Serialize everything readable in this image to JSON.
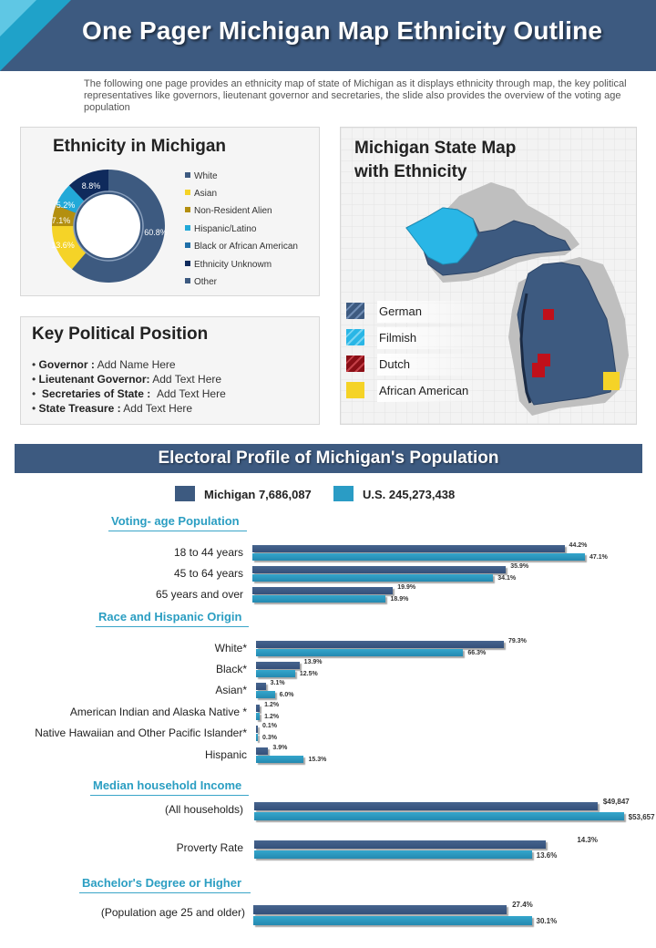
{
  "header": {
    "title": "One Pager Michigan Map Ethnicity Outline",
    "intro": "The following one page provides an ethnicity map of state of Michigan as it displays ethnicity through map, the key political representatives like governors, lieutenant governor and secretaries, the slide also provides the overview of the voting age population"
  },
  "ethnicity": {
    "title": "Ethnicity in Michigan",
    "legend": [
      "White",
      "Asian",
      "Non-Resident Alien",
      "Hispanic/Latino",
      "Black or African American",
      "Ethnicity Unknowm",
      "Other"
    ],
    "labels": {
      "white": "60.8%",
      "asian": "13.6%",
      "nra": "7.1%",
      "hisp": "5.2%",
      "unknown": "8.8%"
    }
  },
  "colors": {
    "white": "#3d5a80",
    "asian": "#f5d327",
    "nra": "#b38f10",
    "hisp": "#22a9d8",
    "black": "#1f6fa8",
    "unknown": "#0f2a5c",
    "other": "#3d5a80",
    "mi": "#3d5a80",
    "us": "#2a9cc5",
    "accent": "#2b9ec2"
  },
  "political": {
    "title": "Key Political Position",
    "items": [
      {
        "label": "Governor :",
        "value": "Add Name Here"
      },
      {
        "label": "Lieutenant Governor:",
        "value": "Add Text Here"
      },
      {
        "label": "Secretaries of State :",
        "value": "Add Text Here"
      },
      {
        "label": "State Treasure :",
        "value": "Add Text Here"
      }
    ]
  },
  "map": {
    "title_line1": "Michigan State Map",
    "title_line2": "with Ethnicity",
    "legend": [
      "German",
      "Filmish",
      "Dutch",
      "African American"
    ]
  },
  "electoral": {
    "banner": "Electoral Profile of Michigan's Population",
    "key_mi": "Michigan 7,686,087",
    "key_us": "U.S. 245,273,438",
    "sections": {
      "voting": "Voting- age Population",
      "race": "Race and Hispanic Origin",
      "income": "Median household Income",
      "bachelor": "Bachelor's Degree or Higher"
    }
  },
  "chart_data": {
    "type": "bar",
    "series": [
      {
        "name": "Michigan 7,686,087"
      },
      {
        "name": "U.S. 245,273,438"
      }
    ],
    "groups": [
      {
        "section": "Voting- age Population",
        "rows": [
          {
            "label": "18 to 44 years",
            "mi": 44.2,
            "us": 47.1,
            "mi_label": "44.2%",
            "us_label": "47.1%"
          },
          {
            "label": "45 to 64 years",
            "mi": 35.9,
            "us": 34.1,
            "mi_label": "35.9%",
            "us_label": "34.1%"
          },
          {
            "label": "65 years and over",
            "mi": 19.9,
            "us": 18.9,
            "mi_label": "19.9%",
            "us_label": "18.9%"
          }
        ]
      },
      {
        "section": "Race and Hispanic Origin",
        "rows": [
          {
            "label": "White*",
            "mi": 79.3,
            "us": 66.3,
            "mi_label": "79.3%",
            "us_label": "66.3%"
          },
          {
            "label": "Black*",
            "mi": 13.9,
            "us": 12.5,
            "mi_label": "13.9%",
            "us_label": "12.5%"
          },
          {
            "label": "Asian*",
            "mi": 3.1,
            "us": 6.0,
            "mi_label": "3.1%",
            "us_label": "6.0%"
          },
          {
            "label": "American Indian and Alaska Native *",
            "mi": 1.2,
            "us": 1.2,
            "mi_label": "1.2%",
            "us_label": "1.2%"
          },
          {
            "label": "Native Hawaiian and Other Pacific Islander*",
            "mi": 0.1,
            "us": 0.3,
            "mi_label": "0.1%",
            "us_label": "0.3%"
          },
          {
            "label": "Hispanic",
            "mi": 3.9,
            "us": 15.3,
            "mi_label": "3.9%",
            "us_label": "15.3%"
          }
        ]
      },
      {
        "section": "Median household Income",
        "rows": [
          {
            "label": "(All households)",
            "mi": 49847,
            "us": 53657,
            "mi_label": "$49,847",
            "us_label": "$53,657"
          },
          {
            "label": "Proverty Rate",
            "mi": 14.3,
            "us": 13.6,
            "mi_label": "14.3%",
            "us_label": "13.6%"
          }
        ]
      },
      {
        "section": "Bachelor's Degree or Higher",
        "rows": [
          {
            "label": "(Population age 25 and older)",
            "mi": 27.4,
            "us": 30.1,
            "mi_label": "27.4%",
            "us_label": "30.1%"
          }
        ]
      }
    ],
    "donut": {
      "type": "pie",
      "categories": [
        "White",
        "Asian",
        "Non-Resident Alien",
        "Hispanic/Latino",
        "Ethnicity Unknowm"
      ],
      "values": [
        60.8,
        13.6,
        7.1,
        5.2,
        8.8
      ]
    }
  }
}
